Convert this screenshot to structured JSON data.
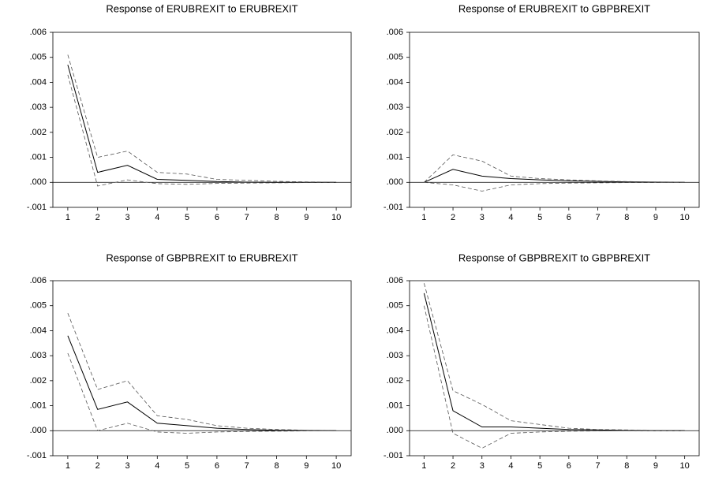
{
  "chart_data": [
    {
      "type": "line",
      "title": "Response of ERUBREXIT to ERUBREXIT",
      "categories": [
        "1",
        "2",
        "3",
        "4",
        "5",
        "6",
        "7",
        "8",
        "9",
        "10"
      ],
      "series": [
        {
          "color": "#000000",
          "dash": false,
          "values": [
            0.0047,
            0.0004,
            0.00068,
            0.00012,
            8e-05,
            3e-05,
            1e-05,
            0,
            0,
            0
          ]
        },
        {
          "color": "#555555",
          "dash": true,
          "values": [
            0.0051,
            0.001,
            0.00125,
            0.0004,
            0.00033,
            0.00012,
            8e-05,
            4e-05,
            2e-05,
            1e-05
          ]
        },
        {
          "color": "#555555",
          "dash": true,
          "values": [
            0.0043,
            -0.00015,
            0.0001,
            -5e-05,
            -8e-05,
            -4e-05,
            -3e-05,
            -2e-05,
            -1e-05,
            -1e-05
          ]
        }
      ],
      "ylim": [
        -0.001,
        0.006
      ],
      "yticks": [
        {
          "value": -0.001,
          "label": "-.001"
        },
        {
          "value": 0,
          "label": ".000"
        },
        {
          "value": 0.001,
          "label": ".001"
        },
        {
          "value": 0.002,
          "label": ".002"
        },
        {
          "value": 0.003,
          "label": ".003"
        },
        {
          "value": 0.004,
          "label": ".004"
        },
        {
          "value": 0.005,
          "label": ".005"
        },
        {
          "value": 0.006,
          "label": ".006"
        }
      ],
      "zero_line": true
    },
    {
      "type": "line",
      "title": "Response of ERUBREXIT to GBPBREXIT",
      "categories": [
        "1",
        "2",
        "3",
        "4",
        "5",
        "6",
        "7",
        "8",
        "9",
        "10"
      ],
      "series": [
        {
          "color": "#000000",
          "dash": false,
          "values": [
            0,
            0.00052,
            0.00025,
            0.00015,
            0.0001,
            6e-05,
            4e-05,
            2e-05,
            1e-05,
            0
          ]
        },
        {
          "color": "#555555",
          "dash": true,
          "values": [
            0,
            0.0011,
            0.00085,
            0.00025,
            0.00015,
            0.0001,
            6e-05,
            3e-05,
            2e-05,
            1e-05
          ]
        },
        {
          "color": "#555555",
          "dash": true,
          "values": [
            0,
            -0.0001,
            -0.00035,
            -0.0001,
            -5e-05,
            -3e-05,
            -2e-05,
            -1e-05,
            -1e-05,
            0
          ]
        }
      ],
      "ylim": [
        -0.001,
        0.006
      ],
      "yticks": [
        {
          "value": -0.001,
          "label": "-.001"
        },
        {
          "value": 0,
          "label": ".000"
        },
        {
          "value": 0.001,
          "label": ".001"
        },
        {
          "value": 0.002,
          "label": ".002"
        },
        {
          "value": 0.003,
          "label": ".003"
        },
        {
          "value": 0.004,
          "label": ".004"
        },
        {
          "value": 0.005,
          "label": ".005"
        },
        {
          "value": 0.006,
          "label": ".006"
        }
      ],
      "zero_line": true
    },
    {
      "type": "line",
      "title": "Response of GBPBREXIT to ERUBREXIT",
      "categories": [
        "1",
        "2",
        "3",
        "4",
        "5",
        "6",
        "7",
        "8",
        "9",
        "10"
      ],
      "series": [
        {
          "color": "#000000",
          "dash": false,
          "values": [
            0.0038,
            0.00085,
            0.00115,
            0.0003,
            0.0002,
            0.0001,
            5e-05,
            2e-05,
            1e-05,
            0
          ]
        },
        {
          "color": "#555555",
          "dash": true,
          "values": [
            0.0047,
            0.00165,
            0.002,
            0.0006,
            0.00045,
            0.0002,
            0.0001,
            5e-05,
            2e-05,
            1e-05
          ]
        },
        {
          "color": "#555555",
          "dash": true,
          "values": [
            0.0031,
            0,
            0.0003,
            -5e-05,
            -0.0001,
            -5e-05,
            -3e-05,
            -2e-05,
            -1e-05,
            0
          ]
        }
      ],
      "ylim": [
        -0.001,
        0.006
      ],
      "yticks": [
        {
          "value": -0.001,
          "label": "-.001"
        },
        {
          "value": 0,
          "label": ".000"
        },
        {
          "value": 0.001,
          "label": ".001"
        },
        {
          "value": 0.002,
          "label": ".002"
        },
        {
          "value": 0.003,
          "label": ".003"
        },
        {
          "value": 0.004,
          "label": ".004"
        },
        {
          "value": 0.005,
          "label": ".005"
        },
        {
          "value": 0.006,
          "label": ".006"
        }
      ],
      "zero_line": true
    },
    {
      "type": "line",
      "title": "Response of GBPBREXIT to GBPBREXIT",
      "categories": [
        "1",
        "2",
        "3",
        "4",
        "5",
        "6",
        "7",
        "8",
        "9",
        "10"
      ],
      "series": [
        {
          "color": "#000000",
          "dash": false,
          "values": [
            0.0055,
            0.0008,
            0.00015,
            0.00015,
            0.0001,
            5e-05,
            3e-05,
            1e-05,
            0,
            0
          ]
        },
        {
          "color": "#555555",
          "dash": true,
          "values": [
            0.0059,
            0.0016,
            0.00105,
            0.0004,
            0.00025,
            0.0001,
            5e-05,
            3e-05,
            1e-05,
            0
          ]
        },
        {
          "color": "#555555",
          "dash": true,
          "values": [
            0.005,
            -0.0001,
            -0.0007,
            -0.0001,
            -5e-05,
            -2e-05,
            -1e-05,
            0,
            0,
            0
          ]
        }
      ],
      "ylim": [
        -0.001,
        0.006
      ],
      "yticks": [
        {
          "value": -0.001,
          "label": "-.001"
        },
        {
          "value": 0,
          "label": ".000"
        },
        {
          "value": 0.001,
          "label": ".001"
        },
        {
          "value": 0.002,
          "label": ".002"
        },
        {
          "value": 0.003,
          "label": ".003"
        },
        {
          "value": 0.004,
          "label": ".004"
        },
        {
          "value": 0.005,
          "label": ".005"
        },
        {
          "value": 0.006,
          "label": ".006"
        }
      ],
      "zero_line": true
    }
  ]
}
